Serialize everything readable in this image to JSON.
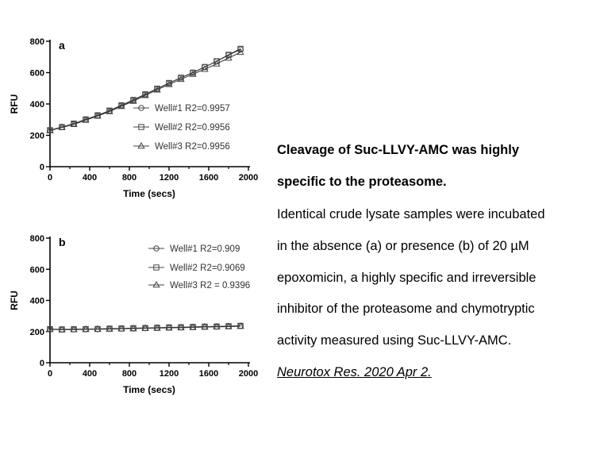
{
  "chart_data": [
    {
      "type": "scatter",
      "panel_label": "a",
      "xlabel": "Time (secs)",
      "ylabel": "RFU",
      "xlim": [
        0,
        2000
      ],
      "ylim": [
        0,
        800
      ],
      "xticks": [
        0,
        400,
        800,
        1200,
        1600,
        2000
      ],
      "yticks": [
        0,
        200,
        400,
        600,
        800
      ],
      "legend_position": "center-right",
      "grid": false,
      "x": [
        0,
        120,
        240,
        360,
        480,
        600,
        720,
        840,
        960,
        1080,
        1200,
        1320,
        1440,
        1560,
        1680,
        1800,
        1920
      ],
      "series": [
        {
          "name": "Well#1 R2=0.9957",
          "marker": "circle",
          "values": [
            232,
            252,
            273,
            300,
            326,
            356,
            390,
            424,
            461,
            497,
            533,
            568,
            600,
            636,
            672,
            712,
            748
          ]
        },
        {
          "name": "Well#2 R2=0.9956",
          "marker": "square",
          "values": [
            233,
            253,
            275,
            302,
            328,
            358,
            392,
            426,
            462,
            498,
            534,
            568,
            600,
            636,
            673,
            714,
            752
          ]
        },
        {
          "name": "Well#3 R2=0.9956",
          "marker": "triangle",
          "values": [
            230,
            250,
            270,
            297,
            323,
            352,
            385,
            418,
            455,
            490,
            525,
            558,
            590,
            622,
            656,
            693,
            730
          ]
        }
      ]
    },
    {
      "type": "scatter",
      "panel_label": "b",
      "xlabel": "Time (secs)",
      "ylabel": "RFU",
      "xlim": [
        0,
        2000
      ],
      "ylim": [
        0,
        800
      ],
      "xticks": [
        0,
        400,
        800,
        1200,
        1600,
        2000
      ],
      "yticks": [
        0,
        200,
        400,
        600,
        800
      ],
      "legend_position": "top-right",
      "grid": false,
      "x": [
        0,
        120,
        240,
        360,
        480,
        600,
        720,
        840,
        960,
        1080,
        1200,
        1320,
        1440,
        1560,
        1680,
        1800,
        1920
      ],
      "series": [
        {
          "name": "Well#1 R2=0.909",
          "marker": "circle",
          "values": [
            215,
            213,
            214,
            215,
            216,
            218,
            219,
            221,
            222,
            224,
            226,
            227,
            229,
            231,
            232,
            234,
            236
          ]
        },
        {
          "name": "Well#2 R2=0.9069",
          "marker": "square",
          "values": [
            216,
            214,
            215,
            216,
            217,
            219,
            220,
            222,
            223,
            225,
            227,
            228,
            230,
            232,
            233,
            235,
            237
          ]
        },
        {
          "name": "Well#3 R2 = 0.9396",
          "marker": "triangle",
          "values": [
            214,
            212,
            213,
            214,
            215,
            216,
            218,
            219,
            221,
            222,
            224,
            225,
            227,
            229,
            230,
            232,
            234
          ]
        }
      ]
    }
  ],
  "caption": {
    "title_line1": "Cleavage of Suc-LLVY-AMC was highly",
    "title_line2": "specific to the proteasome.",
    "body_lines": [
      "Identical crude lysate samples were incubated",
      "in the absence (a) or presence (b) of 20 µM",
      "epoxomicin, a highly specific and irreversible",
      "inhibitor of the proteasome and chymotryptic",
      "activity measured using Suc-LLVY-AMC."
    ],
    "citation": "Neurotox Res. 2020 Apr 2."
  }
}
